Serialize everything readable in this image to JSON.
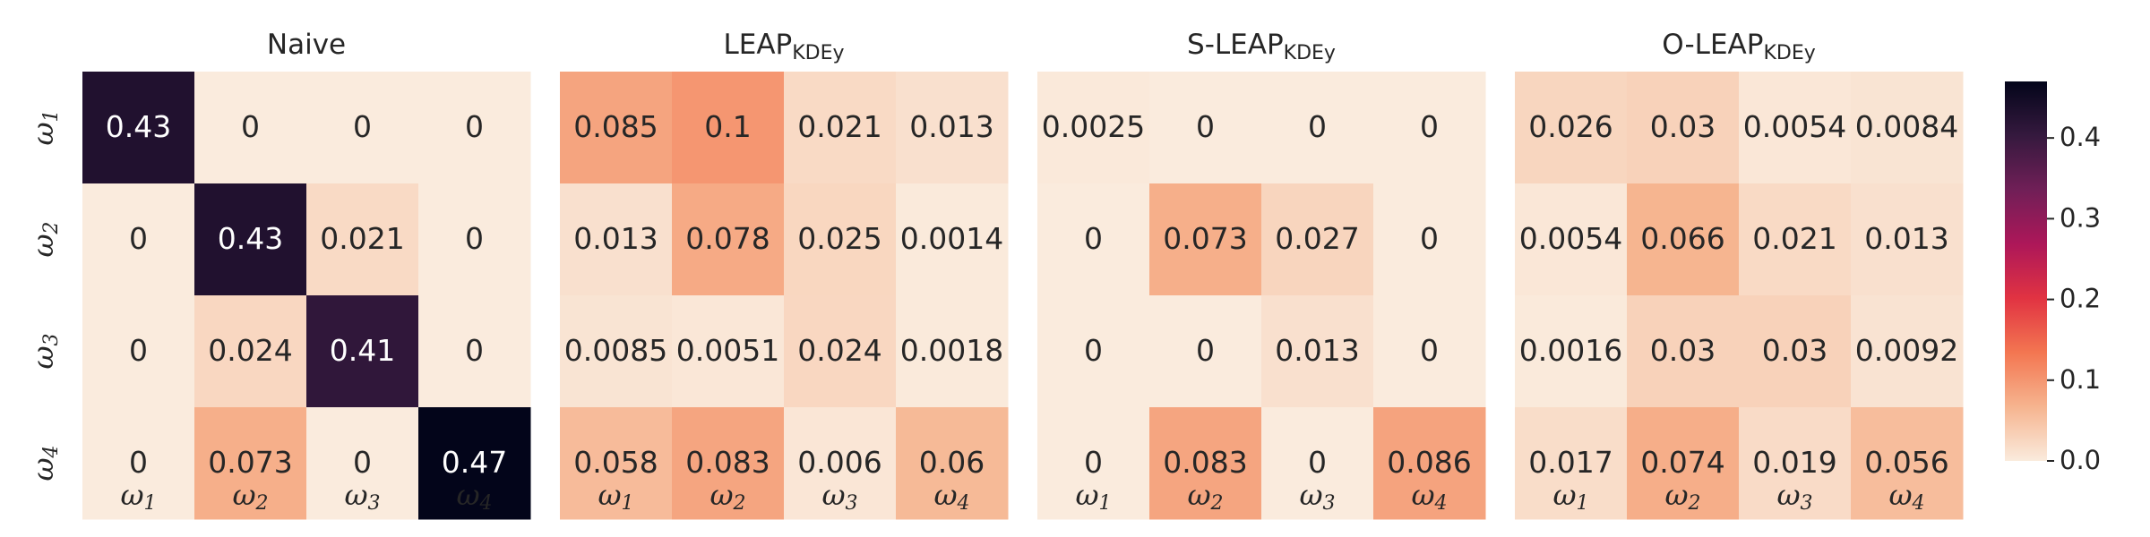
{
  "chart_data": [
    {
      "type": "heatmap",
      "title": "Naive",
      "title_base": "Naive",
      "title_sub": "",
      "row_labels": [
        "ω1",
        "ω2",
        "ω3",
        "ω4"
      ],
      "col_labels": [
        "ω1",
        "ω2",
        "ω3",
        "ω4"
      ],
      "values": [
        [
          0.43,
          0,
          0,
          0
        ],
        [
          0,
          0.43,
          0.021,
          0
        ],
        [
          0,
          0.024,
          0.41,
          0
        ],
        [
          0,
          0.073,
          0,
          0.47
        ]
      ],
      "value_labels": [
        [
          "0.43",
          "0",
          "0",
          "0"
        ],
        [
          "0",
          "0.43",
          "0.021",
          "0"
        ],
        [
          "0",
          "0.024",
          "0.41",
          "0"
        ],
        [
          "0",
          "0.073",
          "0",
          "0.47"
        ]
      ]
    },
    {
      "type": "heatmap",
      "title": "LEAP_KDEy",
      "title_base": "LEAP",
      "title_sub": "KDEy",
      "row_labels": [
        "ω1",
        "ω2",
        "ω3",
        "ω4"
      ],
      "col_labels": [
        "ω1",
        "ω2",
        "ω3",
        "ω4"
      ],
      "values": [
        [
          0.085,
          0.1,
          0.021,
          0.013
        ],
        [
          0.013,
          0.078,
          0.025,
          0.0014
        ],
        [
          0.0085,
          0.0051,
          0.024,
          0.0018
        ],
        [
          0.058,
          0.083,
          0.006,
          0.06
        ]
      ],
      "value_labels": [
        [
          "0.085",
          "0.1",
          "0.021",
          "0.013"
        ],
        [
          "0.013",
          "0.078",
          "0.025",
          "0.0014"
        ],
        [
          "0.0085",
          "0.0051",
          "0.024",
          "0.0018"
        ],
        [
          "0.058",
          "0.083",
          "0.006",
          "0.06"
        ]
      ]
    },
    {
      "type": "heatmap",
      "title": "S-LEAP_KDEy",
      "title_base": "S-LEAP",
      "title_sub": "KDEy",
      "row_labels": [
        "ω1",
        "ω2",
        "ω3",
        "ω4"
      ],
      "col_labels": [
        "ω1",
        "ω2",
        "ω3",
        "ω4"
      ],
      "values": [
        [
          0.0025,
          0,
          0,
          0
        ],
        [
          0,
          0.073,
          0.027,
          0
        ],
        [
          0,
          0,
          0.013,
          0
        ],
        [
          0,
          0.083,
          0,
          0.086
        ]
      ],
      "value_labels": [
        [
          "0.0025",
          "0",
          "0",
          "0"
        ],
        [
          "0",
          "0.073",
          "0.027",
          "0"
        ],
        [
          "0",
          "0",
          "0.013",
          "0"
        ],
        [
          "0",
          "0.083",
          "0",
          "0.086"
        ]
      ]
    },
    {
      "type": "heatmap",
      "title": "O-LEAP_KDEy",
      "title_base": "O-LEAP",
      "title_sub": "KDEy",
      "row_labels": [
        "ω1",
        "ω2",
        "ω3",
        "ω4"
      ],
      "col_labels": [
        "ω1",
        "ω2",
        "ω3",
        "ω4"
      ],
      "values": [
        [
          0.026,
          0.03,
          0.0054,
          0.0084
        ],
        [
          0.0054,
          0.066,
          0.021,
          0.013
        ],
        [
          0.0016,
          0.03,
          0.03,
          0.0092
        ],
        [
          0.017,
          0.074,
          0.019,
          0.056
        ]
      ],
      "value_labels": [
        [
          "0.026",
          "0.03",
          "0.0054",
          "0.0084"
        ],
        [
          "0.0054",
          "0.066",
          "0.021",
          "0.013"
        ],
        [
          "0.0016",
          "0.03",
          "0.03",
          "0.0092"
        ],
        [
          "0.017",
          "0.074",
          "0.019",
          "0.056"
        ]
      ]
    }
  ],
  "colorbar": {
    "range": [
      0,
      0.47
    ],
    "ticks": [
      0.0,
      0.1,
      0.2,
      0.3,
      0.4
    ],
    "tick_labels": [
      "0.0",
      "0.1",
      "0.2",
      "0.3",
      "0.4"
    ],
    "colormap": "rocket_r",
    "colormap_stops": [
      "#faebdd",
      "#f6b48f",
      "#f37651",
      "#e13342",
      "#ad1759",
      "#701f57",
      "#35193e",
      "#03051a"
    ]
  }
}
